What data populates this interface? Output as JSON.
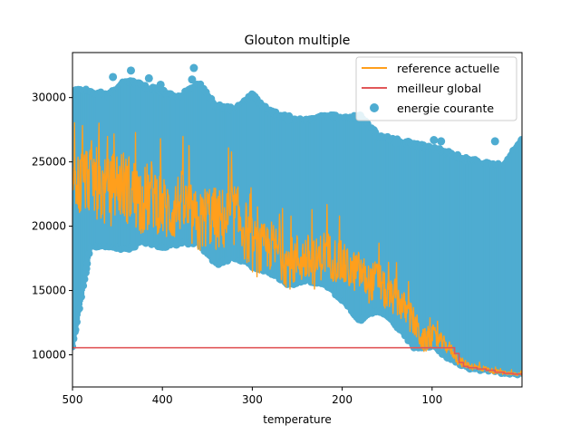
{
  "chart_data": {
    "type": "line",
    "title": "Glouton multiple",
    "xlabel": "temperature",
    "ylabel": "",
    "x_direction": "decreasing",
    "xlim": [
      500,
      0
    ],
    "ylim": [
      7500,
      33500
    ],
    "xticks": [
      500,
      400,
      300,
      200,
      100
    ],
    "xtick_labels": [
      "500",
      "400",
      "300",
      "200",
      "100"
    ],
    "yticks": [
      10000,
      15000,
      20000,
      25000,
      30000
    ],
    "ytick_labels": [
      "10000",
      "15000",
      "20000",
      "25000",
      "30000"
    ],
    "grid": false,
    "legend_position": "top-right",
    "legend": [
      "reference actuelle",
      "meilleur global",
      "energie courante"
    ],
    "colors": {
      "reference": "#ff9f1c",
      "global": "#e15759",
      "energie": "#4eacd1"
    },
    "series": [
      {
        "name": "energie courante",
        "style": "scatter",
        "x": [
          500,
          480,
          460,
          440,
          420,
          400,
          380,
          360,
          340,
          320,
          300,
          280,
          260,
          240,
          220,
          200,
          180,
          160,
          140,
          120,
          100,
          80,
          60,
          40,
          20,
          0
        ],
        "upper": [
          30800,
          30600,
          30300,
          31500,
          31000,
          30600,
          30200,
          31300,
          29500,
          29200,
          30300,
          29000,
          28600,
          28300,
          28700,
          28600,
          28600,
          27200,
          26800,
          26500,
          26200,
          25800,
          25300,
          25000,
          24800,
          27000
        ],
        "lower": [
          10500,
          18300,
          18400,
          18100,
          18700,
          18300,
          18600,
          18600,
          16900,
          17500,
          16800,
          16300,
          15300,
          15700,
          15400,
          14200,
          12600,
          13400,
          12200,
          10500,
          10600,
          9600,
          8900,
          8700,
          8500,
          8400
        ],
        "outliers": [
          [
            435,
            32100
          ],
          [
            365,
            32300
          ],
          [
            455,
            31600
          ],
          [
            415,
            31500
          ],
          [
            367,
            31400
          ],
          [
            402,
            31000
          ],
          [
            180,
            28600
          ],
          [
            260,
            28300
          ],
          [
            140,
            26500
          ],
          [
            98,
            26700
          ],
          [
            90,
            26600
          ],
          [
            30,
            26600
          ]
        ]
      },
      {
        "name": "reference actuelle",
        "style": "line",
        "x": [
          500,
          490,
          480,
          470,
          460,
          450,
          440,
          430,
          420,
          410,
          400,
          390,
          380,
          370,
          360,
          350,
          340,
          330,
          320,
          310,
          300,
          290,
          280,
          270,
          260,
          250,
          240,
          230,
          220,
          210,
          200,
          190,
          180,
          170,
          160,
          150,
          140,
          130,
          120,
          110,
          100,
          90,
          80,
          70,
          60,
          50,
          40,
          30,
          20,
          10,
          0
        ],
        "y": [
          22500,
          23500,
          24000,
          23000,
          22500,
          23500,
          23000,
          22500,
          22000,
          22500,
          21500,
          21000,
          22000,
          21000,
          20000,
          21000,
          20500,
          20500,
          21000,
          20000,
          18500,
          18000,
          18500,
          18000,
          17000,
          17500,
          17500,
          17000,
          18000,
          17500,
          17000,
          16500,
          16500,
          15500,
          16000,
          14500,
          14500,
          13500,
          12500,
          11000,
          11500,
          11000,
          10500,
          9500,
          9200,
          9000,
          8900,
          8700,
          8600,
          8500,
          8500
        ],
        "band": [
          2800,
          2800,
          2800,
          2800,
          2800,
          2800,
          2800,
          2800,
          2800,
          2800,
          2500,
          2500,
          2500,
          2500,
          2500,
          2500,
          2500,
          2500,
          2500,
          2500,
          2200,
          2200,
          2000,
          2000,
          2000,
          2000,
          2000,
          2000,
          1800,
          1800,
          1800,
          1600,
          1600,
          1500,
          1500,
          1400,
          1400,
          1300,
          1200,
          1000,
          900,
          700,
          500,
          400,
          300,
          300,
          200,
          200,
          150,
          150,
          150
        ]
      },
      {
        "name": "meilleur global",
        "style": "step",
        "x": [
          500,
          80,
          75,
          70,
          65,
          60,
          50,
          40,
          30,
          20,
          10,
          0
        ],
        "y": [
          10550,
          10550,
          10100,
          9400,
          9100,
          9000,
          8900,
          8800,
          8650,
          8550,
          8500,
          8500
        ]
      }
    ]
  }
}
